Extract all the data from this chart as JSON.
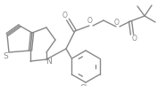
{
  "bg_color": "#ffffff",
  "line_color": "#888888",
  "text_color": "#888888",
  "line_width": 1.0,
  "font_size": 5.5,
  "figsize": [
    1.86,
    0.97
  ],
  "dpi": 100,
  "xlim": [
    0,
    186
  ],
  "ylim": [
    0,
    97
  ]
}
